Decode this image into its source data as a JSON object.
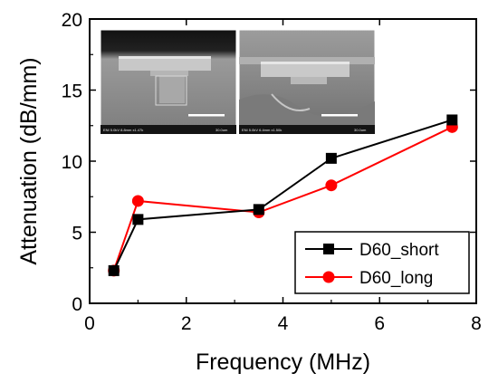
{
  "chart_data": {
    "type": "line",
    "xlabel": "Frequency (MHz)",
    "ylabel": "Attenuation  (dB/mm)",
    "xlim": [
      0,
      8
    ],
    "ylim": [
      0,
      20
    ],
    "x_ticks": [
      0,
      2,
      4,
      6,
      8
    ],
    "y_ticks": [
      0,
      5,
      10,
      15,
      20
    ],
    "x_tick_labels": [
      "0",
      "2",
      "4",
      "6",
      "8"
    ],
    "y_tick_labels": [
      "0",
      "5",
      "10",
      "15",
      "20"
    ],
    "grid": false,
    "legend_position": "bottom-right",
    "series": [
      {
        "name": "D60_short",
        "marker": "square",
        "color": "#000000",
        "x": [
          0.5,
          1.0,
          3.5,
          5.0,
          7.5
        ],
        "y": [
          2.3,
          5.9,
          6.6,
          10.2,
          12.9
        ]
      },
      {
        "name": "D60_long",
        "marker": "circle",
        "color": "#ff0000",
        "x": [
          0.5,
          1.0,
          3.5,
          5.0,
          7.5
        ],
        "y": [
          2.3,
          7.2,
          6.4,
          8.3,
          12.4
        ]
      }
    ],
    "insets": [
      {
        "caption": "ENI 5.0kV 8.8mm x1.47k",
        "scale_label": "30.0um"
      },
      {
        "caption": "ENI 5.0kV 6.4mm x1.50k",
        "scale_label": "30.0um"
      }
    ]
  }
}
